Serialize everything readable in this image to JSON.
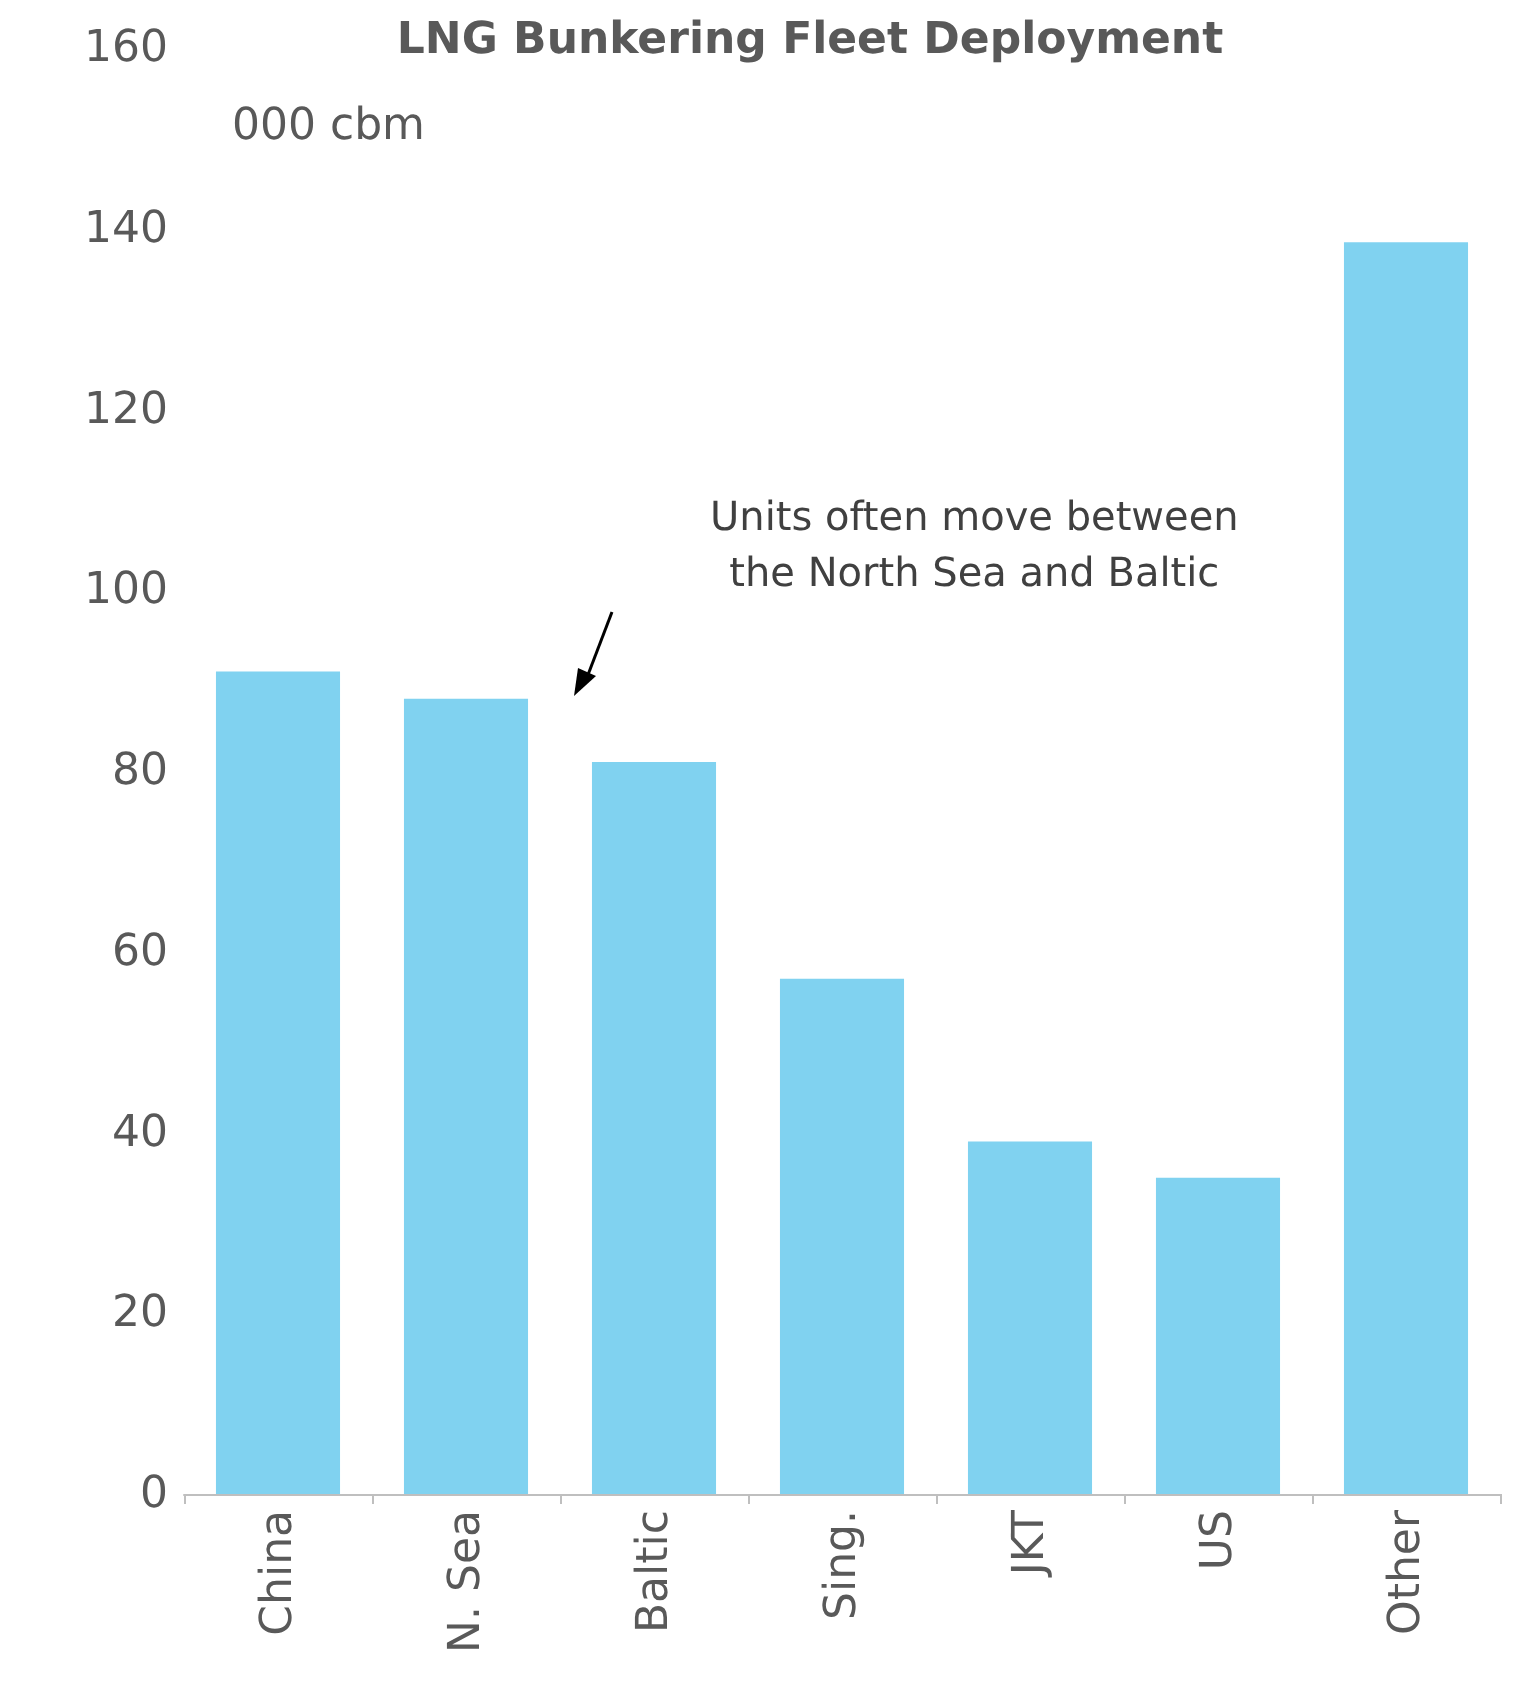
{
  "chart_data": {
    "type": "bar",
    "title": "LNG Bunkering Fleet Deployment",
    "ylabel": "000 cbm",
    "categories": [
      "China",
      "N. Sea",
      "Baltic",
      "Sing.",
      "JKT",
      "US",
      "Other"
    ],
    "values": [
      91,
      88,
      81,
      57,
      39,
      35,
      138.5
    ],
    "color": "#80d2f0",
    "ylim": [
      0,
      160
    ],
    "yticks": [
      0,
      20,
      40,
      60,
      80,
      100,
      120,
      140,
      160
    ],
    "grid": false,
    "annotations": [
      "Units often move between\nthe North Sea and Baltic"
    ]
  }
}
